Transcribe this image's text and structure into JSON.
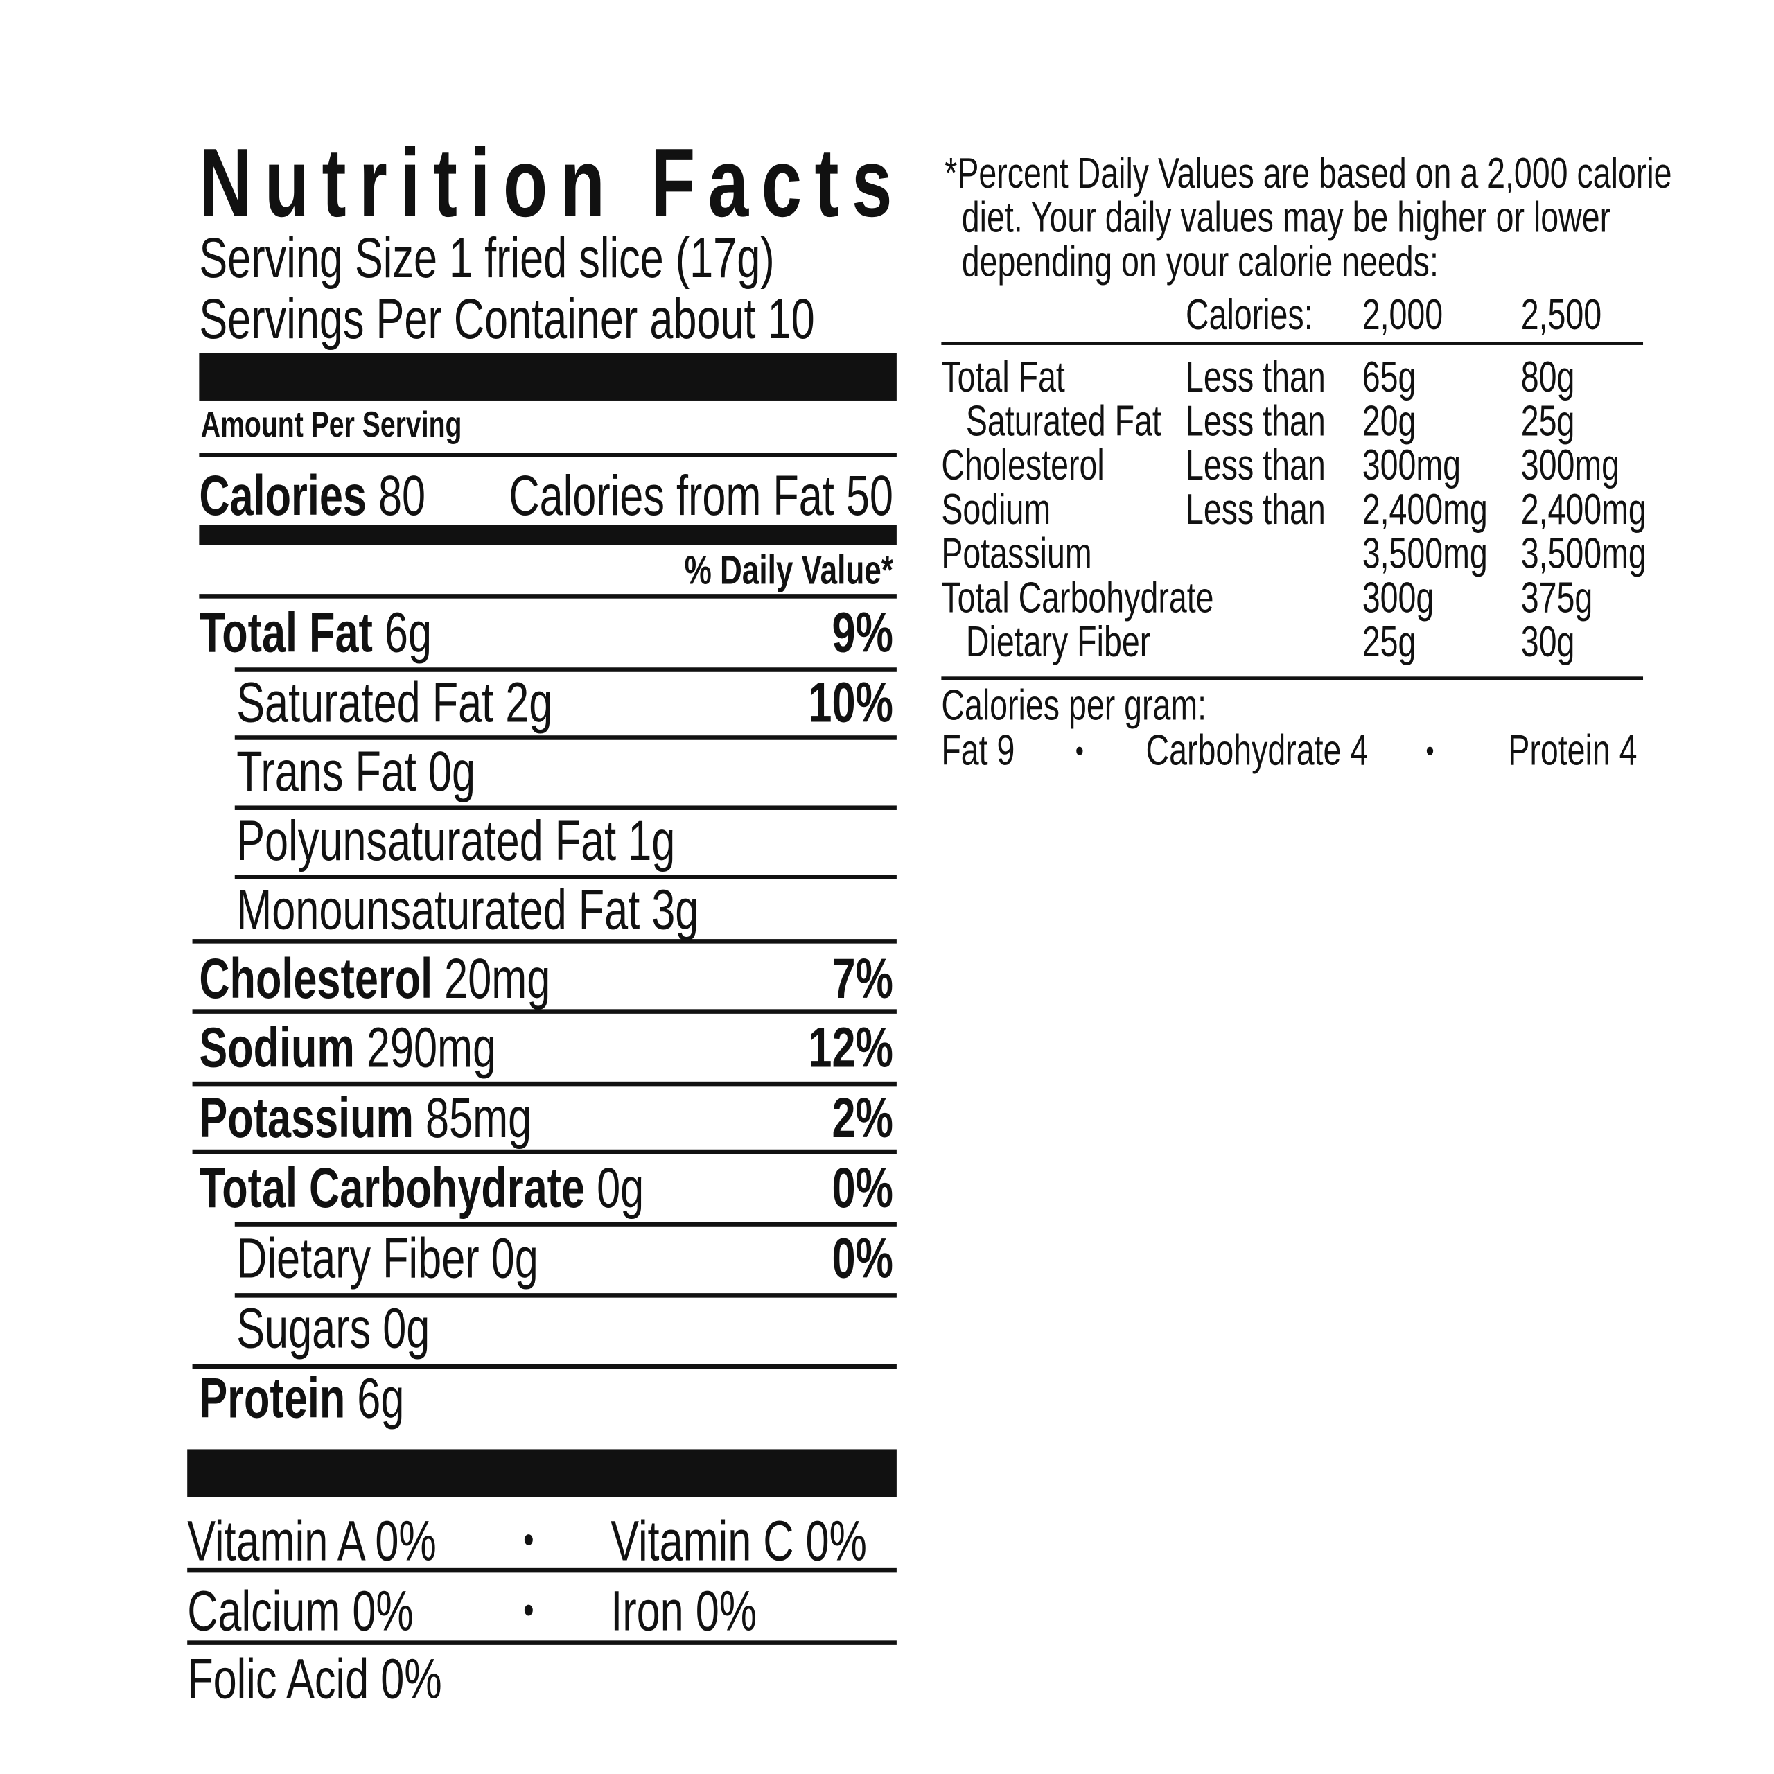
{
  "title": "Nutrition Facts",
  "serving_size": "Serving Size 1 fried slice (17g)",
  "servings_per_container": "Servings Per Container about 10",
  "amount_per_serving": "Amount Per Serving",
  "calories": {
    "label": "Calories",
    "value": "80",
    "from_fat": "Calories from Fat 50"
  },
  "dv_header": "% Daily Value*",
  "nutrients": [
    {
      "label": "Total Fat",
      "amount": "6g",
      "dv": "9%",
      "bold": true,
      "indent": false
    },
    {
      "label": "Saturated Fat",
      "amount": "2g",
      "dv": "10%",
      "bold": false,
      "indent": true
    },
    {
      "label": "Trans Fat",
      "amount": "0g",
      "dv": "",
      "bold": false,
      "indent": true
    },
    {
      "label": "Polyunsaturated Fat",
      "amount": "1g",
      "dv": "",
      "bold": false,
      "indent": true
    },
    {
      "label": "Monounsaturated Fat",
      "amount": "3g",
      "dv": "",
      "bold": false,
      "indent": true
    },
    {
      "label": "Cholesterol",
      "amount": "20mg",
      "dv": "7%",
      "bold": true,
      "indent": false
    },
    {
      "label": "Sodium",
      "amount": "290mg",
      "dv": "12%",
      "bold": true,
      "indent": false
    },
    {
      "label": "Potassium",
      "amount": "85mg",
      "dv": "2%",
      "bold": true,
      "indent": false
    },
    {
      "label": "Total Carbohydrate",
      "amount": "0g",
      "dv": "0%",
      "bold": true,
      "indent": false
    },
    {
      "label": "Dietary Fiber",
      "amount": "0g",
      "dv": "0%",
      "bold": false,
      "indent": true
    },
    {
      "label": "Sugars",
      "amount": "0g",
      "dv": "",
      "bold": false,
      "indent": true
    },
    {
      "label": "Protein",
      "amount": "6g",
      "dv": "",
      "bold": true,
      "indent": false
    }
  ],
  "vitamins": {
    "vitamin_a": "Vitamin A 0%",
    "vitamin_c": "Vitamin C 0%",
    "calcium": "Calcium 0%",
    "iron": "Iron 0%",
    "folic_acid": "Folic Acid 0%",
    "bullet": "•"
  },
  "footnote": {
    "lines": [
      "*Percent Daily Values are based on a 2,000 calorie",
      "diet. Your daily values may be higher or lower",
      "depending on your calorie needs:"
    ],
    "header": {
      "label": "Calories:",
      "col1": "2,000",
      "col2": "2,500"
    },
    "rows": [
      {
        "nutrient": "Total Fat",
        "qualifier": "Less than",
        "col1": "65g",
        "col2": "80g",
        "indent": false
      },
      {
        "nutrient": "Saturated Fat",
        "qualifier": "Less than",
        "col1": "20g",
        "col2": "25g",
        "indent": true
      },
      {
        "nutrient": "Cholesterol",
        "qualifier": "Less than",
        "col1": "300mg",
        "col2": "300mg",
        "indent": false
      },
      {
        "nutrient": "Sodium",
        "qualifier": "Less than",
        "col1": "2,400mg",
        "col2": "2,400mg",
        "indent": false
      },
      {
        "nutrient": "Potassium",
        "qualifier": "",
        "col1": "3,500mg",
        "col2": "3,500mg",
        "indent": false
      },
      {
        "nutrient": "Total Carbohydrate",
        "qualifier": "",
        "col1": "300g",
        "col2": "375g",
        "indent": false
      },
      {
        "nutrient": "Dietary Fiber",
        "qualifier": "",
        "col1": "25g",
        "col2": "30g",
        "indent": true
      }
    ],
    "calories_per_gram": "Calories per gram:",
    "fat": "Fat 9",
    "carbohydrate": "Carbohydrate 4",
    "protein": "Protein 4",
    "bullet": "•"
  }
}
